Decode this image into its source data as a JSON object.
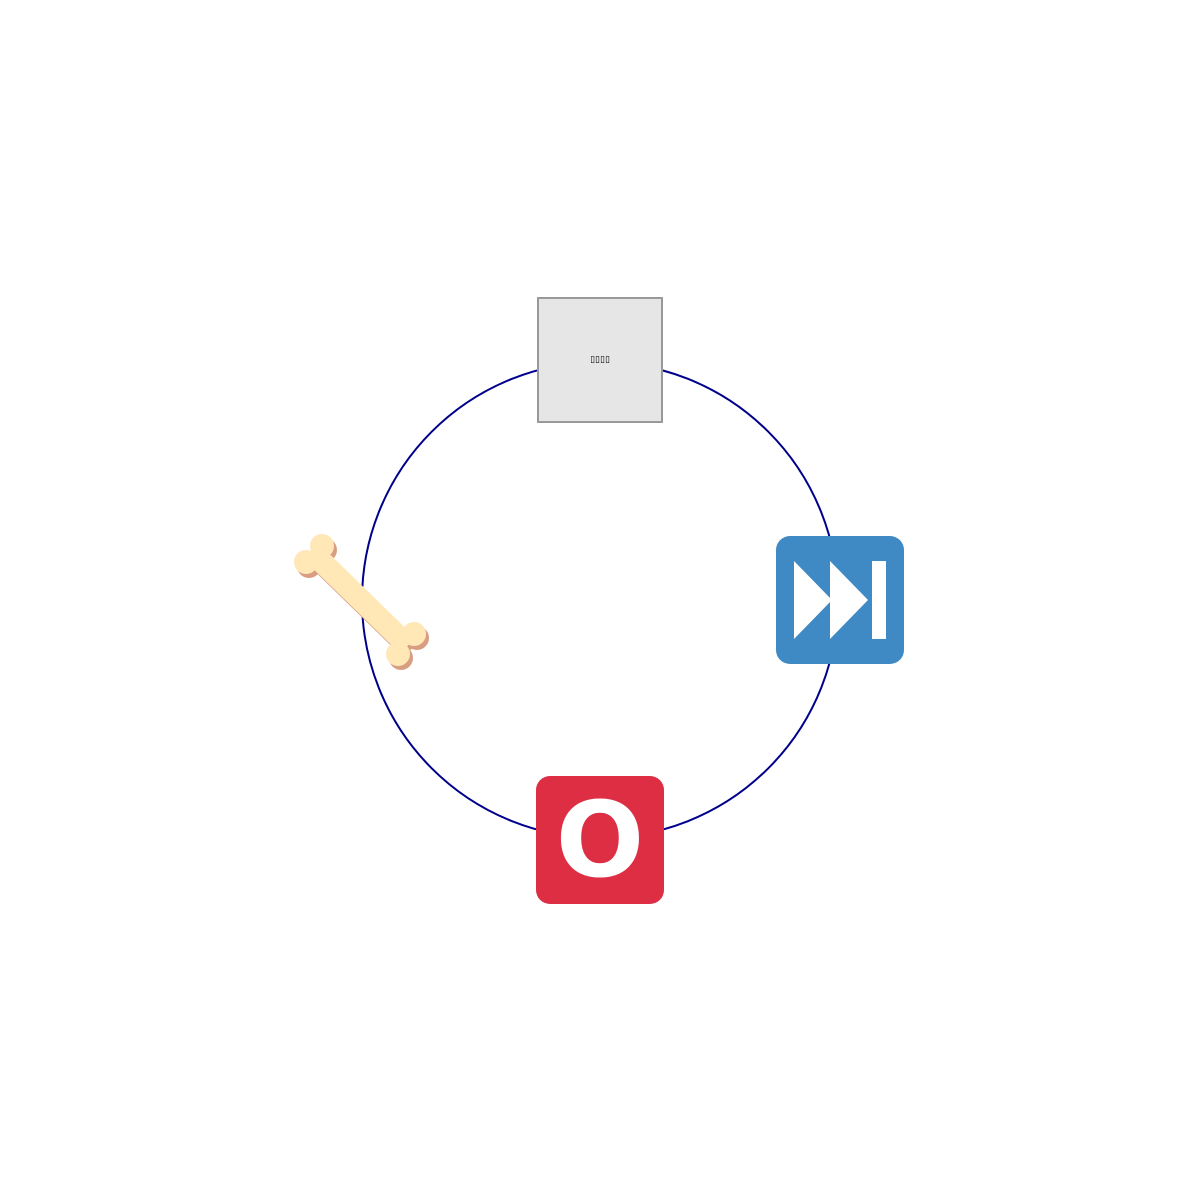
{
  "diagram": {
    "type": "cycle",
    "ring_color": "#00008B",
    "nodes": [
      {
        "id": "top",
        "icon": "placeholder-glyph-icon",
        "glyph_text": "▯▯▯▯",
        "fill": "#E6E6E6",
        "stroke": "#999999"
      },
      {
        "id": "right",
        "icon": "fast-forward-next-track-icon",
        "fill": "#3F8AC4",
        "glyph_color": "#FFFFFF"
      },
      {
        "id": "bottom",
        "icon": "o-blood-type-icon",
        "letter": "O",
        "fill": "#DD2E44",
        "glyph_color": "#FFFFFF"
      },
      {
        "id": "left",
        "icon": "bone-icon",
        "fill": "#FFE8B6",
        "shadow": "#D99E82"
      }
    ]
  }
}
